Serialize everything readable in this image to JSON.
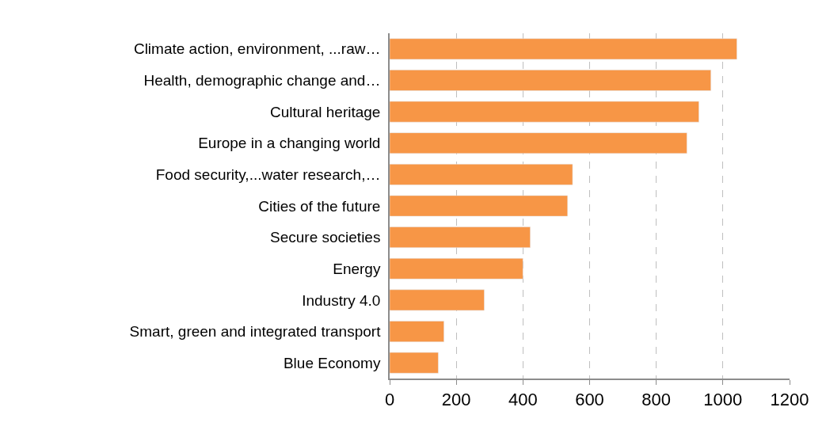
{
  "chart_data": {
    "type": "bar",
    "orientation": "horizontal",
    "categories": [
      "Climate action, environment, ...raw…",
      "Health, demographic change and…",
      "Cultural heritage",
      "Europe in a changing world",
      "Food security,...water research,…",
      "Cities of the future",
      "Secure societies",
      "Energy",
      "Industry 4.0",
      "Smart, green and integrated transport",
      "Blue Economy"
    ],
    "values": [
      1042,
      964,
      928,
      892,
      549,
      534,
      422,
      400,
      284,
      163,
      146
    ],
    "color": "#f79646",
    "xlim": [
      0,
      1200
    ],
    "xticks": [
      0,
      200,
      400,
      600,
      800,
      1000,
      1200
    ],
    "grid": "x",
    "legend": false
  }
}
